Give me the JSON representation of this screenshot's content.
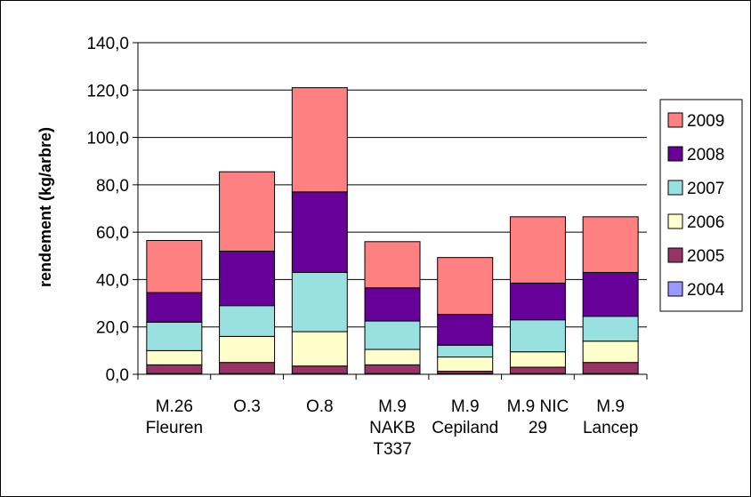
{
  "chart_data": {
    "type": "bar",
    "stacked": true,
    "ylabel": "rendement (kg/arbre)",
    "xlabel": "",
    "ylim": [
      0,
      140
    ],
    "yticks": [
      "0,0",
      "20,0",
      "40,0",
      "60,0",
      "80,0",
      "100,0",
      "120,0",
      "140,0"
    ],
    "categories": [
      [
        "M.26",
        "Fleuren"
      ],
      [
        "O.3"
      ],
      [
        "O.8"
      ],
      [
        "M.9",
        "NAKB",
        "T337"
      ],
      [
        "M.9",
        "Cepiland"
      ],
      [
        "M.9 NIC",
        "29"
      ],
      [
        "M.9",
        "Lancep"
      ]
    ],
    "grid": "horizontal",
    "legend_position": "right",
    "series": [
      {
        "name": "2004",
        "color": "#9999ff",
        "values": [
          0.3,
          0.3,
          0.3,
          0.3,
          0.3,
          0.3,
          0.3
        ]
      },
      {
        "name": "2005",
        "color": "#993366",
        "values": [
          3.7,
          4.7,
          3.2,
          3.7,
          1.0,
          2.7,
          4.7
        ]
      },
      {
        "name": "2006",
        "color": "#ffffcc",
        "values": [
          6.0,
          11.0,
          14.5,
          6.5,
          6.0,
          6.5,
          9.0
        ]
      },
      {
        "name": "2007",
        "color": "#99e0e0",
        "values": [
          12.0,
          13.0,
          25.0,
          12.0,
          5.0,
          13.5,
          10.5
        ]
      },
      {
        "name": "2008",
        "color": "#660099",
        "values": [
          12.5,
          23.0,
          34.0,
          14.0,
          13.0,
          15.5,
          18.5
        ]
      },
      {
        "name": "2009",
        "color": "#ff8080",
        "values": [
          22.0,
          33.5,
          44.0,
          19.5,
          24.0,
          28.0,
          23.5
        ]
      }
    ]
  }
}
